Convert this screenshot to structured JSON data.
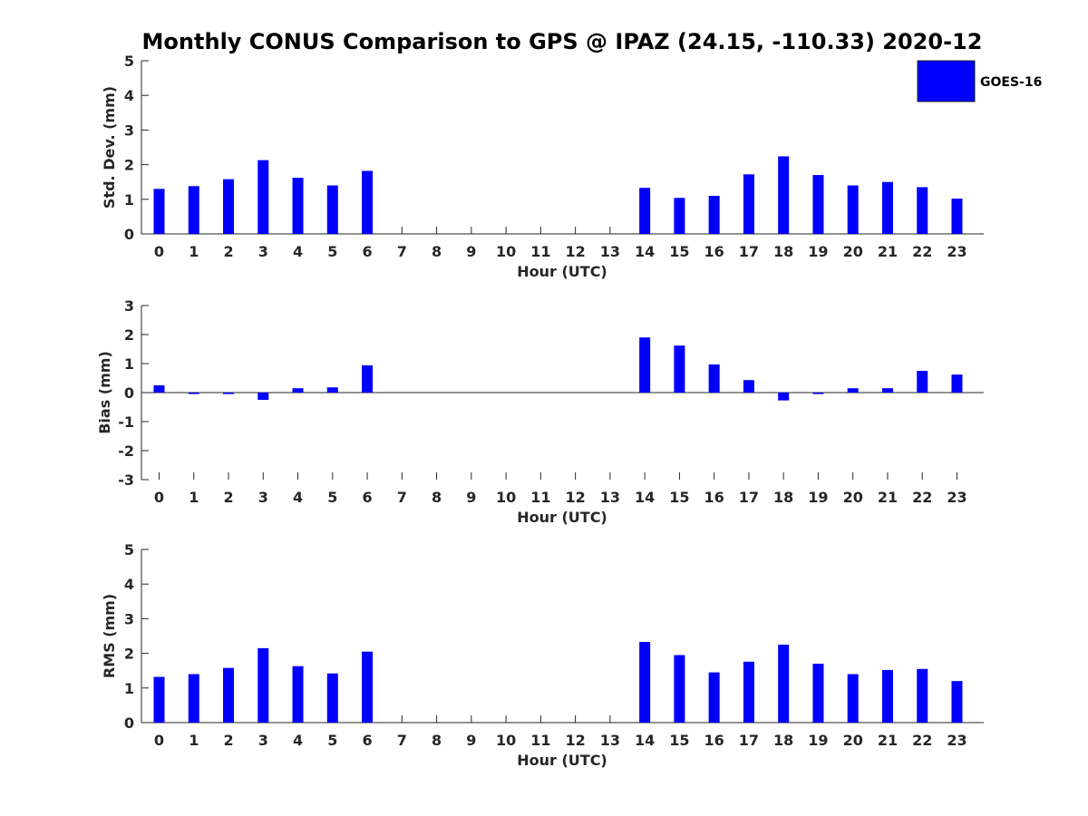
{
  "chart_data": {
    "title": "Monthly CONUS Comparison to GPS @ IPAZ (24.15, -110.33) 2020-12",
    "legend": {
      "label": "GOES-16",
      "color": "#0000ff",
      "placement": "top-right"
    },
    "series_color": "#0000ff",
    "hours": [
      0,
      1,
      2,
      3,
      4,
      5,
      6,
      7,
      8,
      9,
      10,
      11,
      12,
      13,
      14,
      15,
      16,
      17,
      18,
      19,
      20,
      21,
      22,
      23
    ],
    "panels": [
      {
        "id": "std-dev",
        "type": "bar",
        "ylabel": "Std. Dev. (mm)",
        "xlabel": "Hour (UTC)",
        "ylim": [
          0,
          5
        ],
        "yticks": [
          0,
          1,
          2,
          3,
          4,
          5
        ],
        "values": [
          1.3,
          1.38,
          1.58,
          2.13,
          1.62,
          1.4,
          1.82,
          null,
          null,
          null,
          null,
          null,
          null,
          null,
          1.33,
          1.04,
          1.1,
          1.72,
          2.24,
          1.7,
          1.4,
          1.5,
          1.35,
          1.02
        ]
      },
      {
        "id": "bias",
        "type": "bar",
        "ylabel": "Bias (mm)",
        "xlabel": "Hour (UTC)",
        "ylim": [
          -3,
          3
        ],
        "yticks": [
          -3,
          -2,
          -1,
          0,
          1,
          2,
          3
        ],
        "values": [
          0.25,
          -0.05,
          -0.05,
          -0.25,
          0.15,
          0.18,
          0.94,
          null,
          null,
          null,
          null,
          null,
          null,
          null,
          1.9,
          1.62,
          0.97,
          0.43,
          -0.27,
          -0.05,
          0.15,
          0.15,
          0.75,
          0.62
        ]
      },
      {
        "id": "rms",
        "type": "bar",
        "ylabel": "RMS (mm)",
        "xlabel": "Hour (UTC)",
        "ylim": [
          0,
          5
        ],
        "yticks": [
          0,
          1,
          2,
          3,
          4,
          5
        ],
        "values": [
          1.32,
          1.4,
          1.58,
          2.15,
          1.63,
          1.42,
          2.05,
          null,
          null,
          null,
          null,
          null,
          null,
          null,
          2.33,
          1.95,
          1.45,
          1.76,
          2.25,
          1.7,
          1.4,
          1.52,
          1.55,
          1.2
        ]
      }
    ]
  }
}
